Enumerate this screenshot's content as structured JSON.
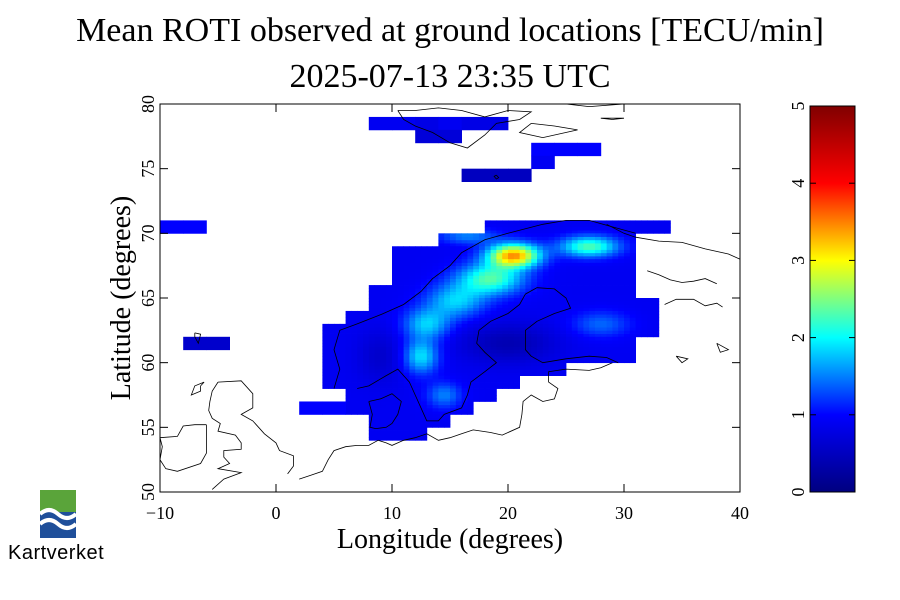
{
  "title": {
    "line1": "Mean ROTI observed at ground locations [TECU/min]",
    "line2": "2025-07-13 23:35 UTC"
  },
  "map": {
    "xlabel": "Longitude (degrees)",
    "ylabel": "Latitude (degrees)",
    "xlim": [
      -10,
      40
    ],
    "ylim": [
      50,
      80
    ],
    "xticks": [
      -10,
      0,
      10,
      20,
      30,
      40
    ],
    "yticks": [
      50,
      55,
      60,
      65,
      70,
      75,
      80
    ],
    "cell_size_deg": {
      "lon": 2,
      "lat": 1
    },
    "observed_cells": [
      {
        "lon": 8,
        "lat": 78,
        "v": 0.9
      },
      {
        "lon": 10,
        "lat": 78,
        "v": 0.9
      },
      {
        "lon": 12,
        "lat": 78,
        "v": 0.8
      },
      {
        "lon": 14,
        "lat": 78,
        "v": 0.9
      },
      {
        "lon": 16,
        "lat": 78,
        "v": 0.8
      },
      {
        "lon": 18,
        "lat": 78,
        "v": 0.8
      },
      {
        "lon": 12,
        "lat": 77,
        "v": 0.7
      },
      {
        "lon": 14,
        "lat": 77,
        "v": 0.7
      },
      {
        "lon": 22,
        "lat": 76,
        "v": 1.0
      },
      {
        "lon": 24,
        "lat": 76,
        "v": 1.0
      },
      {
        "lon": 26,
        "lat": 76,
        "v": 1.0
      },
      {
        "lon": 22,
        "lat": 75,
        "v": 0.9
      },
      {
        "lon": 16,
        "lat": 74,
        "v": 0.5
      },
      {
        "lon": 18,
        "lat": 74,
        "v": 0.5
      },
      {
        "lon": 20,
        "lat": 74,
        "v": 0.5
      },
      {
        "lon": -10,
        "lat": 70,
        "v": 1.0
      },
      {
        "lon": -8,
        "lat": 70,
        "v": 1.0
      },
      {
        "lon": -8,
        "lat": 61,
        "v": 0.6
      },
      {
        "lon": -6,
        "lat": 61,
        "v": 0.6
      },
      {
        "lon": 2,
        "lat": 56,
        "v": 1.0
      },
      {
        "lon": 4,
        "lat": 56,
        "v": 1.0
      }
    ],
    "roti_field": {
      "base": 0.9,
      "bumps": [
        {
          "lon": 20.5,
          "lat": 68.3,
          "amp": 2.5,
          "rlon": 2.2,
          "rlat": 0.9
        },
        {
          "lon": 18.5,
          "lat": 66.5,
          "amp": 1.4,
          "rlon": 2.8,
          "rlat": 1.2
        },
        {
          "lon": 15.5,
          "lat": 64.8,
          "amp": 0.9,
          "rlon": 2.5,
          "rlat": 1.3
        },
        {
          "lon": 13.0,
          "lat": 63.0,
          "amp": 0.9,
          "rlon": 2.0,
          "rlat": 1.2
        },
        {
          "lon": 12.5,
          "lat": 60.5,
          "amp": 1.0,
          "rlon": 1.5,
          "rlat": 1.3
        },
        {
          "lon": 14.5,
          "lat": 57.5,
          "amp": 0.6,
          "rlon": 1.5,
          "rlat": 1.0
        },
        {
          "lon": 27.0,
          "lat": 69.0,
          "amp": 1.4,
          "rlon": 2.5,
          "rlat": 0.8
        },
        {
          "lon": 28.0,
          "lat": 63.0,
          "amp": 0.5,
          "rlon": 2.5,
          "rlat": 1.0
        },
        {
          "lon": 16.5,
          "lat": 69.8,
          "amp": 0.6,
          "rlon": 2.5,
          "rlat": 0.6
        },
        {
          "lon": 20.0,
          "lat": 61.5,
          "amp": -0.5,
          "rlon": 4.0,
          "rlat": 1.5
        },
        {
          "lon": 9.0,
          "lat": 60.5,
          "amp": -0.3,
          "rlon": 2.0,
          "rlat": 2.0
        }
      ],
      "rows": [
        {
          "lat": 70,
          "lon_min": 18,
          "lon_max": 34
        },
        {
          "lat": 69,
          "lon_min": 14,
          "lon_max": 31
        },
        {
          "lat": 68,
          "lon_min": 10,
          "lon_max": 31
        },
        {
          "lat": 67,
          "lon_min": 10,
          "lon_max": 31
        },
        {
          "lat": 66,
          "lon_min": 10,
          "lon_max": 31
        },
        {
          "lat": 65,
          "lon_min": 8,
          "lon_max": 31
        },
        {
          "lat": 64,
          "lon_min": 8,
          "lon_max": 33
        },
        {
          "lat": 63,
          "lon_min": 6,
          "lon_max": 33
        },
        {
          "lat": 62,
          "lon_min": 4,
          "lon_max": 33
        },
        {
          "lat": 61,
          "lon_min": 4,
          "lon_max": 31
        },
        {
          "lat": 60,
          "lon_min": 4,
          "lon_max": 31
        },
        {
          "lat": 59,
          "lon_min": 4,
          "lon_max": 25
        },
        {
          "lat": 58,
          "lon_min": 4,
          "lon_max": 21
        },
        {
          "lat": 57,
          "lon_min": 6,
          "lon_max": 19
        },
        {
          "lat": 56,
          "lon_min": 6,
          "lon_max": 17
        },
        {
          "lat": 55,
          "lon_min": 8,
          "lon_max": 15
        },
        {
          "lat": 54,
          "lon_min": 8,
          "lon_max": 13
        }
      ]
    }
  },
  "colorbar": {
    "min": 0,
    "max": 5,
    "ticks": [
      0,
      1,
      2,
      3,
      4,
      5
    ]
  },
  "colors": {
    "scale": [
      "#000080",
      "#0000ff",
      "#00ffff",
      "#ffff00",
      "#ff0000",
      "#800000"
    ]
  },
  "logo": {
    "icon": "kartverket-logo",
    "text": "Kartverket"
  }
}
